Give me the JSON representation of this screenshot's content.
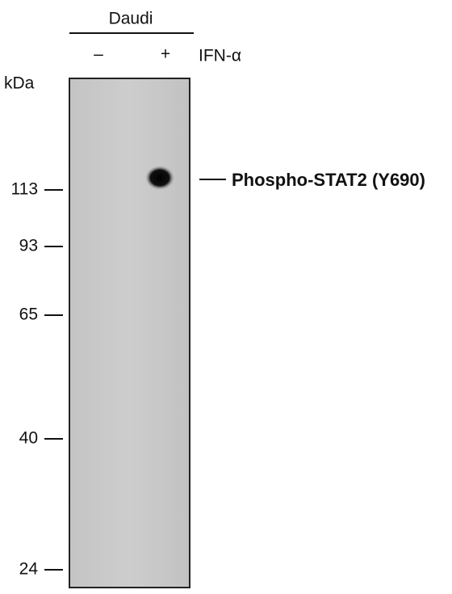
{
  "header": {
    "cell_line": "Daudi",
    "lanes": [
      "–",
      "+"
    ],
    "treatment": "IFN-α"
  },
  "axis_label": "kDa",
  "markers": [
    113,
    93,
    65,
    40,
    24
  ],
  "band_label": "Phospho-STAT2 (Y690)"
}
